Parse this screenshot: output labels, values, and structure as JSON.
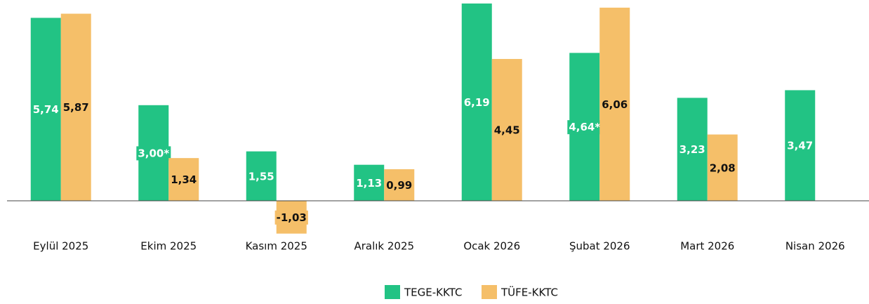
{
  "chart_data": {
    "type": "bar",
    "categories": [
      "Eylül 2025",
      "Ekim 2025",
      "Kasım 2025",
      "Aralık 2025",
      "Ocak 2026",
      "Şubat 2026",
      "Mart 2026",
      "Nisan 2026"
    ],
    "series": [
      {
        "name": "TEGE-KKTC",
        "color": "#22c384",
        "values": [
          5.74,
          3.0,
          1.55,
          1.13,
          6.19,
          4.64,
          3.23,
          3.47
        ],
        "value_labels": [
          "5,74",
          "3,00*",
          "1,55",
          "1,13",
          "6,19",
          "4,64*",
          "3,23",
          "3,47"
        ]
      },
      {
        "name": "TÜFE-KKTC",
        "color": "#f5bf69",
        "values": [
          5.87,
          1.34,
          -1.03,
          0.99,
          4.45,
          6.06,
          2.08,
          null
        ],
        "value_labels": [
          "5,87",
          "1,34",
          "-1,03",
          "0,99",
          "4,45",
          "6,06",
          "2,08",
          null
        ]
      }
    ],
    "ylim": [
      -1.6,
      6.3
    ],
    "legend": "bottom"
  }
}
